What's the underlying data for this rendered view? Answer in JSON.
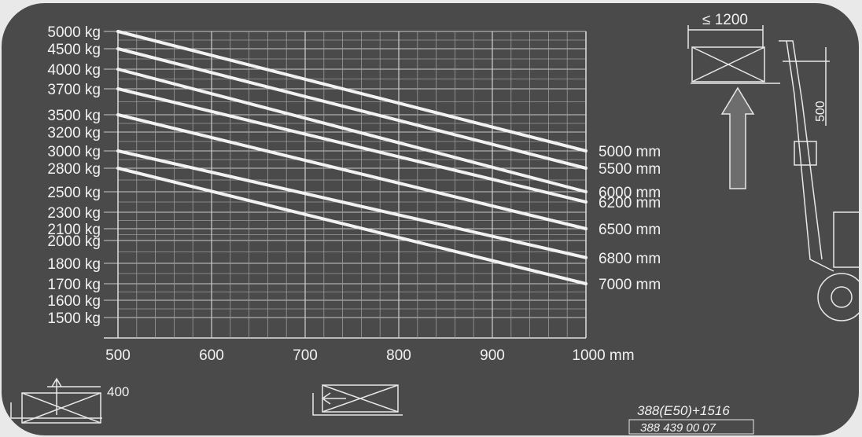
{
  "chart_data": {
    "type": "line",
    "y_tick_labels": [
      "5000 kg",
      "4500 kg",
      "4000 kg",
      "3700 kg",
      "3500 kg",
      "3200 kg",
      "3000 kg",
      "2800 kg",
      "2500 kg",
      "2300 kg",
      "2100 kg",
      "2000 kg",
      "1800 kg",
      "1700 kg",
      "1600 kg",
      "1500 kg"
    ],
    "x_tick_labels": [
      "500",
      "600",
      "700",
      "800",
      "900",
      "1000 mm"
    ],
    "x_ticks": [
      500,
      600,
      700,
      800,
      900,
      1000
    ],
    "xlim": [
      500,
      1000
    ],
    "y_scale": "non-linear (labelled capacity steps)",
    "grid": true,
    "series": [
      {
        "name": "5000 mm",
        "x": [
          500,
          1000
        ],
        "y": [
          5000,
          3000
        ]
      },
      {
        "name": "5500 mm",
        "x": [
          500,
          1000
        ],
        "y": [
          4500,
          2800
        ]
      },
      {
        "name": "6000 mm",
        "x": [
          500,
          1000
        ],
        "y": [
          4000,
          2500
        ]
      },
      {
        "name": "6200 mm",
        "x": [
          500,
          1000
        ],
        "y": [
          3700,
          2400
        ]
      },
      {
        "name": "6500 mm",
        "x": [
          500,
          1000
        ],
        "y": [
          3500,
          2100
        ]
      },
      {
        "name": "6800 mm",
        "x": [
          500,
          1000
        ],
        "y": [
          3000,
          1850
        ]
      },
      {
        "name": "7000 mm",
        "x": [
          500,
          1000
        ],
        "y": [
          2800,
          1700
        ]
      }
    ]
  },
  "diagram": {
    "top_dimension": "≤ 1200",
    "side_dimension": "500",
    "bottom_left_dimension": "400"
  },
  "plate": {
    "model_code": "388(E50)+1516",
    "part_number": "388 439 00 07"
  },
  "colors": {
    "background": "#4a4a4a",
    "line": "#f2f2f2"
  }
}
